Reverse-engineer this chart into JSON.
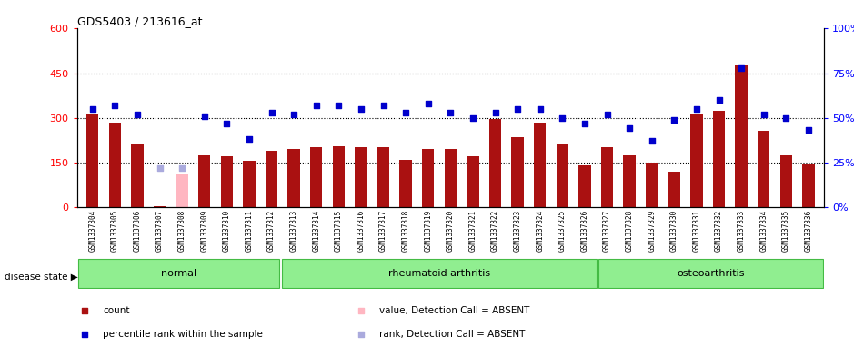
{
  "title": "GDS5403 / 213616_at",
  "samples": [
    "GSM1337304",
    "GSM1337305",
    "GSM1337306",
    "GSM1337307",
    "GSM1337308",
    "GSM1337309",
    "GSM1337310",
    "GSM1337311",
    "GSM1337312",
    "GSM1337313",
    "GSM1337314",
    "GSM1337315",
    "GSM1337316",
    "GSM1337317",
    "GSM1337318",
    "GSM1337319",
    "GSM1337320",
    "GSM1337321",
    "GSM1337322",
    "GSM1337323",
    "GSM1337324",
    "GSM1337325",
    "GSM1337326",
    "GSM1337327",
    "GSM1337328",
    "GSM1337329",
    "GSM1337330",
    "GSM1337331",
    "GSM1337332",
    "GSM1337333",
    "GSM1337334",
    "GSM1337335",
    "GSM1337336"
  ],
  "counts": [
    310,
    285,
    215,
    3,
    0,
    175,
    170,
    155,
    190,
    195,
    200,
    205,
    200,
    200,
    160,
    195,
    195,
    170,
    295,
    235,
    285,
    215,
    140,
    200,
    175,
    150,
    120,
    310,
    325,
    475,
    255,
    175,
    145
  ],
  "absent_bar_idx": 4,
  "absent_bar_count": 110,
  "absent_dot_idx": 3,
  "absent_dot_rank": 22,
  "ranks": [
    55,
    57,
    52,
    null,
    null,
    51,
    47,
    38,
    53,
    52,
    57,
    57,
    55,
    57,
    53,
    58,
    53,
    50,
    53,
    55,
    55,
    50,
    47,
    52,
    44,
    37,
    49,
    55,
    60,
    78,
    52,
    50,
    43
  ],
  "groups": [
    {
      "label": "normal",
      "start": 0,
      "end": 9
    },
    {
      "label": "rheumatoid arthritis",
      "start": 9,
      "end": 23
    },
    {
      "label": "osteoarthritis",
      "start": 23,
      "end": 33
    }
  ],
  "ylim_left": [
    0,
    600
  ],
  "ylim_right": [
    0,
    100
  ],
  "yticks_left": [
    0,
    150,
    300,
    450,
    600
  ],
  "yticks_right": [
    0,
    25,
    50,
    75,
    100
  ],
  "hlines": [
    150,
    300,
    450
  ],
  "bar_color": "#AA1111",
  "dot_color": "#0000CC",
  "absent_bar_color": "#FFB6C1",
  "absent_dot_color": "#AAAADD",
  "xtick_bg_color": "#CCCCCC",
  "group_color": "#90EE90",
  "group_border_color": "#44BB44",
  "legend_items": [
    {
      "label": "count",
      "color": "#AA1111",
      "marker": "s"
    },
    {
      "label": "percentile rank within the sample",
      "color": "#0000CC",
      "marker": "s"
    },
    {
      "label": "value, Detection Call = ABSENT",
      "color": "#FFB6C1",
      "marker": "s"
    },
    {
      "label": "rank, Detection Call = ABSENT",
      "color": "#AAAADD",
      "marker": "s"
    }
  ]
}
